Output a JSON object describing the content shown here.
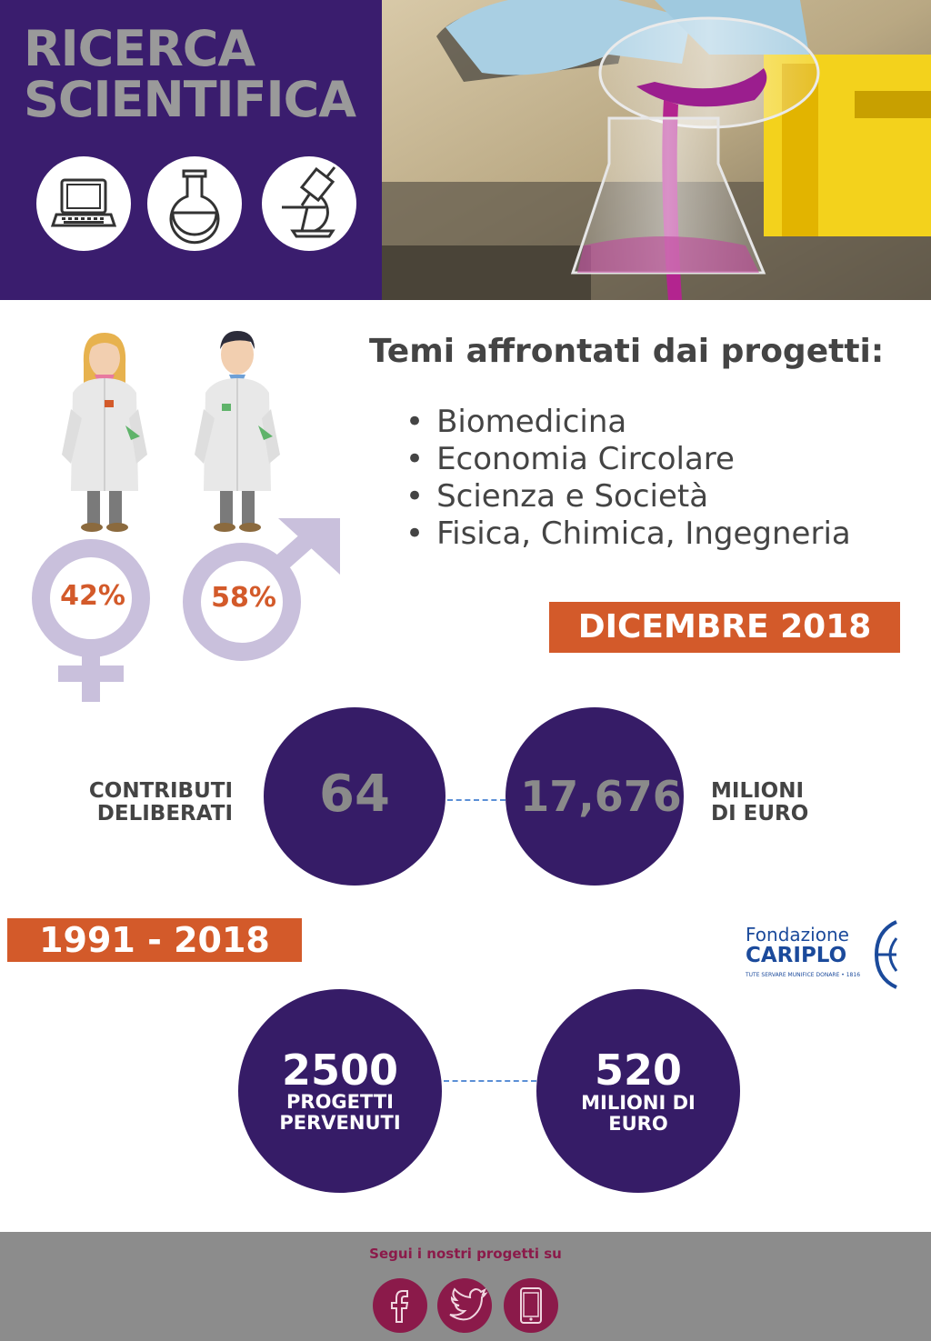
{
  "header": {
    "title_line1": "RICERCA",
    "title_line2": "SCIENTIFICA",
    "icons": [
      "laptop-icon",
      "flask-icon",
      "microscope-icon"
    ]
  },
  "gender": {
    "female_pct": "42%",
    "male_pct": "58%"
  },
  "themes": {
    "title": "Temi affrontati dai progetti:",
    "items": [
      "Biomedicina",
      "Economia Circolare",
      "Scienza e Società",
      "Fisica, Chimica, Ingegneria"
    ]
  },
  "dec2018": {
    "label": "DICEMBRE 2018",
    "left_label_1": "CONTRIBUTI",
    "left_label_2": "DELIBERATI",
    "contributi": "64",
    "milioni": "17,676",
    "right_label_1": "MILIONI",
    "right_label_2": "DI EURO"
  },
  "period": {
    "label": "1991 - 2018",
    "progetti_num": "2500",
    "progetti_label_1": "PROGETTI",
    "progetti_label_2": "PERVENUTI",
    "milioni_num": "520",
    "milioni_label_1": "MILIONI DI",
    "milioni_label_2": "EURO"
  },
  "logo": {
    "line1": "Fondazione",
    "line2": "CARIPLO",
    "motto": "TUTE SERVARE MUNIFICE DONARE • 1816"
  },
  "footer": {
    "text": "Segui i nostri progetti su",
    "icons": [
      "facebook-icon",
      "twitter-icon",
      "smartphone-icon"
    ]
  },
  "colors": {
    "purple": "#3a1d6e",
    "orange": "#d35a2a",
    "lavender": "#c9c0dc",
    "footer_gray": "#8c8c8c",
    "social": "#8b1a4a"
  }
}
